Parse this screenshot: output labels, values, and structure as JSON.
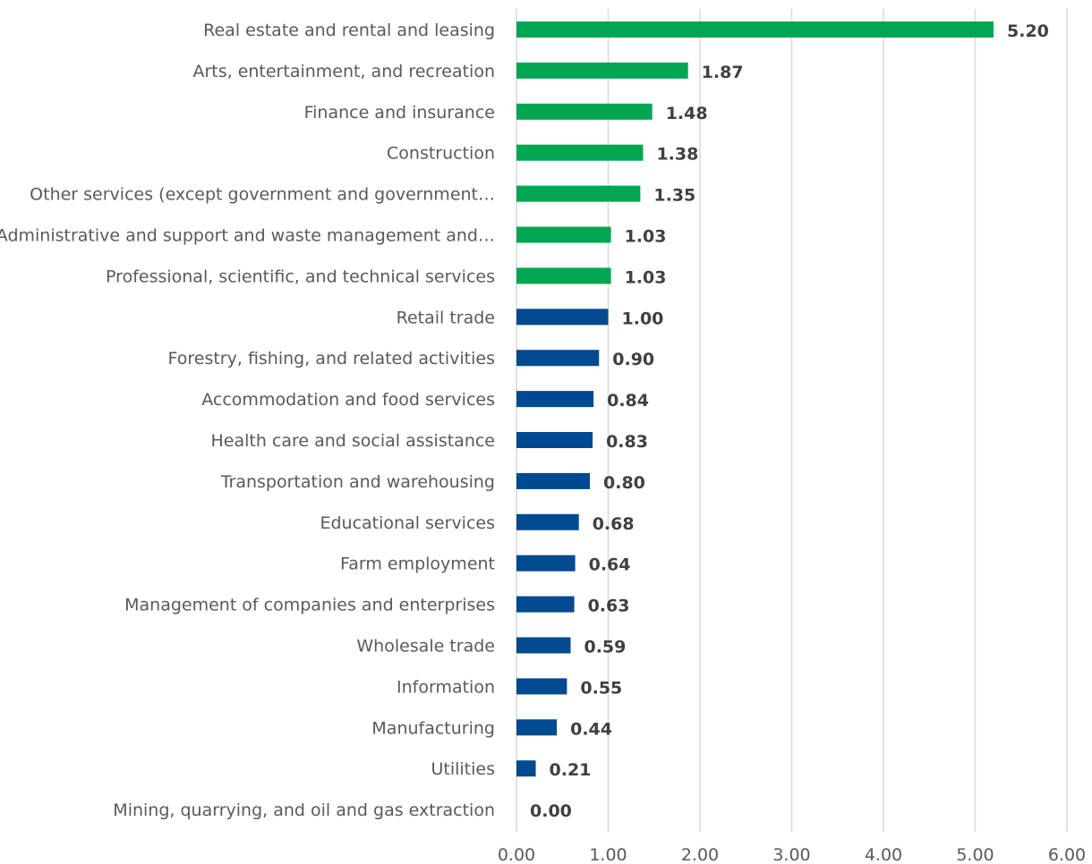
{
  "chart_data": {
    "type": "bar",
    "orientation": "horizontal",
    "title": "",
    "xlabel": "",
    "ylabel": "",
    "xlim": [
      0,
      6
    ],
    "x_ticks": [
      "0.00",
      "1.00",
      "2.00",
      "3.00",
      "4.00",
      "5.00",
      "6.00"
    ],
    "grid": true,
    "legend": "none",
    "categories": [
      "Real estate and rental and leasing",
      "Arts, entertainment, and recreation",
      "Finance and insurance",
      "Construction",
      "Other services (except government and government…",
      "Administrative and support and waste management and…",
      "Professional, scientific, and technical services",
      "Retail trade",
      "Forestry, fishing, and related activities",
      "Accommodation and food services",
      "Health care and social assistance",
      "Transportation and warehousing",
      "Educational services",
      "Farm employment",
      "Management of companies and enterprises",
      "Wholesale trade",
      "Information",
      "Manufacturing",
      "Utilities",
      "Mining, quarrying, and oil and gas extraction"
    ],
    "values": [
      5.2,
      1.87,
      1.48,
      1.38,
      1.35,
      1.03,
      1.03,
      1.0,
      0.9,
      0.84,
      0.83,
      0.8,
      0.68,
      0.64,
      0.63,
      0.59,
      0.55,
      0.44,
      0.21,
      0.0
    ],
    "value_labels": [
      "5.20",
      "1.87",
      "1.48",
      "1.38",
      "1.35",
      "1.03",
      "1.03",
      "1.00",
      "0.90",
      "0.84",
      "0.83",
      "0.80",
      "0.68",
      "0.64",
      "0.63",
      "0.59",
      "0.55",
      "0.44",
      "0.21",
      "0.00"
    ],
    "colors": {
      "above_one": "#00a651",
      "at_or_below_one": "#004a8f",
      "gridline": "#d9d9d9",
      "category_text": "#595959",
      "value_text": "#404040"
    }
  }
}
